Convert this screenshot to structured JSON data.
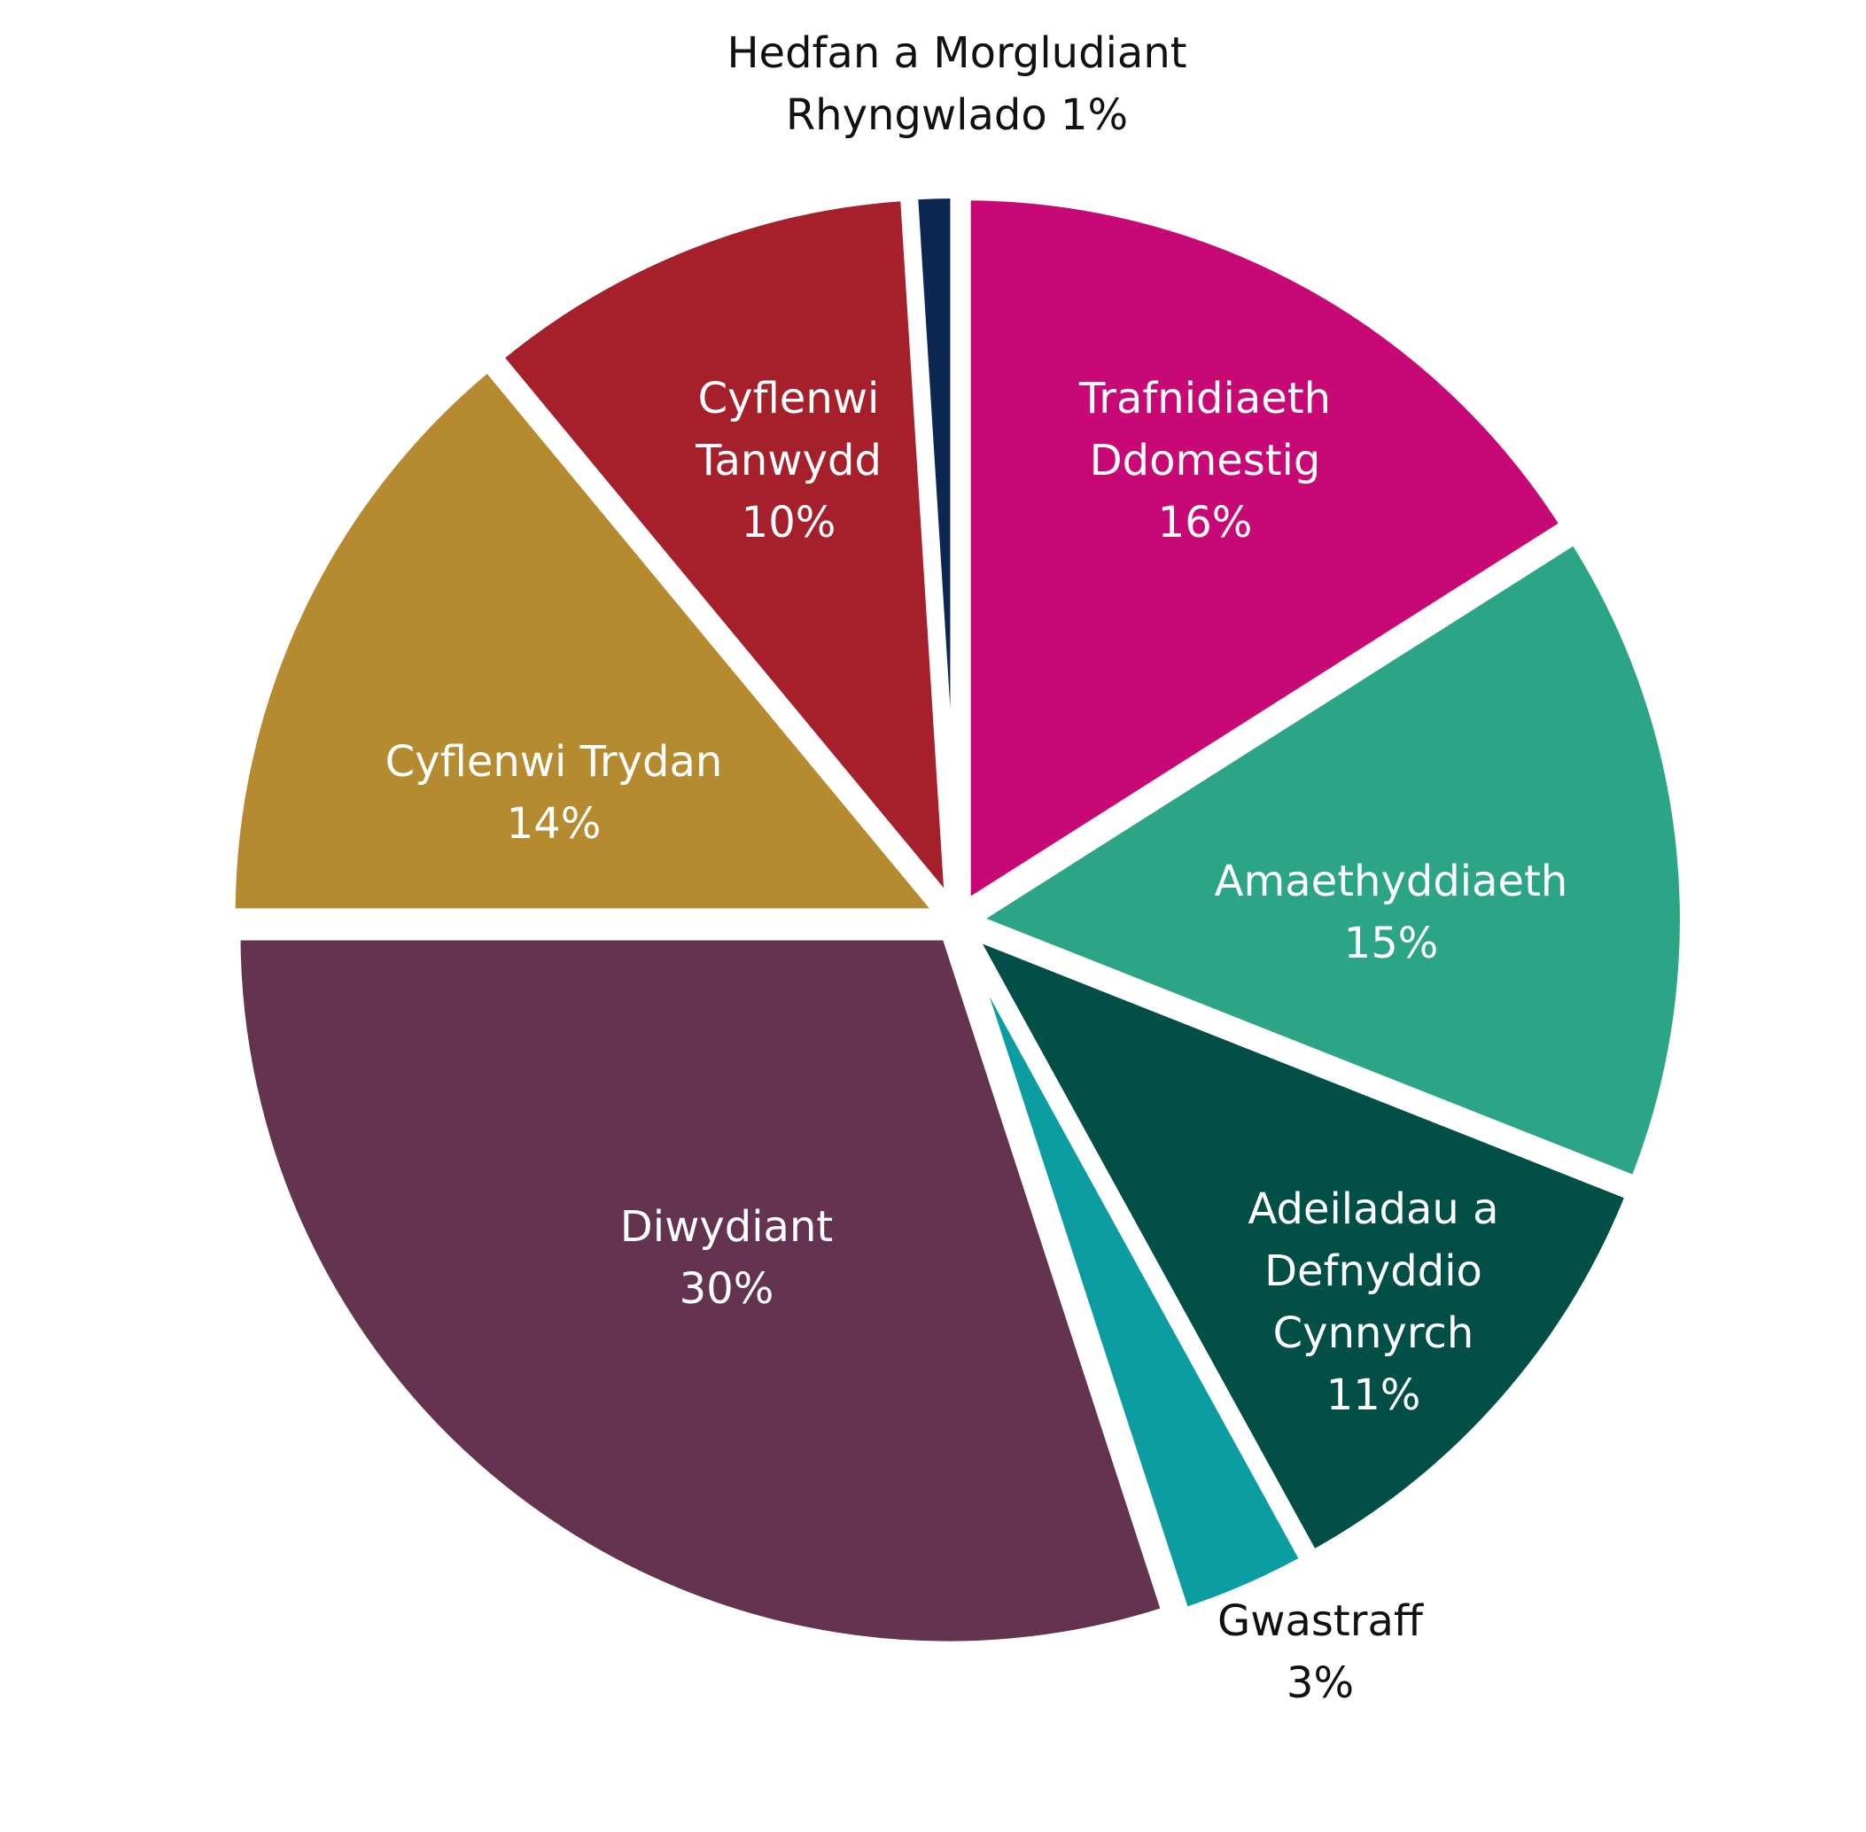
{
  "chart_data": {
    "type": "pie",
    "slices": [
      {
        "label_lines": [
          "Trafnidiaeth",
          "Ddomestig",
          "16%"
        ],
        "value": 16,
        "color": "#c70875",
        "text_color": "#ffffff",
        "label_pos": "inside"
      },
      {
        "label_lines": [
          "Amaethyddiaeth",
          "15%"
        ],
        "value": 15,
        "color": "#2ca486",
        "text_color": "#ffffff",
        "label_pos": "inside"
      },
      {
        "label_lines": [
          "Adeiladau a",
          "Defnyddio",
          "Cynnyrch",
          "11%"
        ],
        "value": 11,
        "color": "#014f46",
        "text_color": "#ffffff",
        "label_pos": "inside"
      },
      {
        "label_lines": [
          "Gwastraff",
          "3%"
        ],
        "value": 3,
        "color": "#0c9da2",
        "text_color": "#111111",
        "label_pos": "outside"
      },
      {
        "label_lines": [
          "Diwydiant",
          "30%"
        ],
        "value": 30,
        "color": "#633350",
        "text_color": "#ffffff",
        "label_pos": "inside"
      },
      {
        "label_lines": [
          "Cyflenwi Trydan",
          "14%"
        ],
        "value": 14,
        "color": "#b68b2f",
        "text_color": "#ffffff",
        "label_pos": "inside"
      },
      {
        "label_lines": [
          "Cyflenwi",
          "Tanwydd",
          "10%"
        ],
        "value": 10,
        "color": "#a6202c",
        "text_color": "#ffffff",
        "label_pos": "inside"
      },
      {
        "label_lines": [
          "Hedfan a Morgludiant",
          "Rhyngwlado 1%"
        ],
        "value": 1,
        "color": "#0b2752",
        "text_color": "#111111",
        "label_pos": "outside"
      }
    ],
    "start": "12 o'clock",
    "direction": "clockwise",
    "exploded": true,
    "legend": "none"
  }
}
